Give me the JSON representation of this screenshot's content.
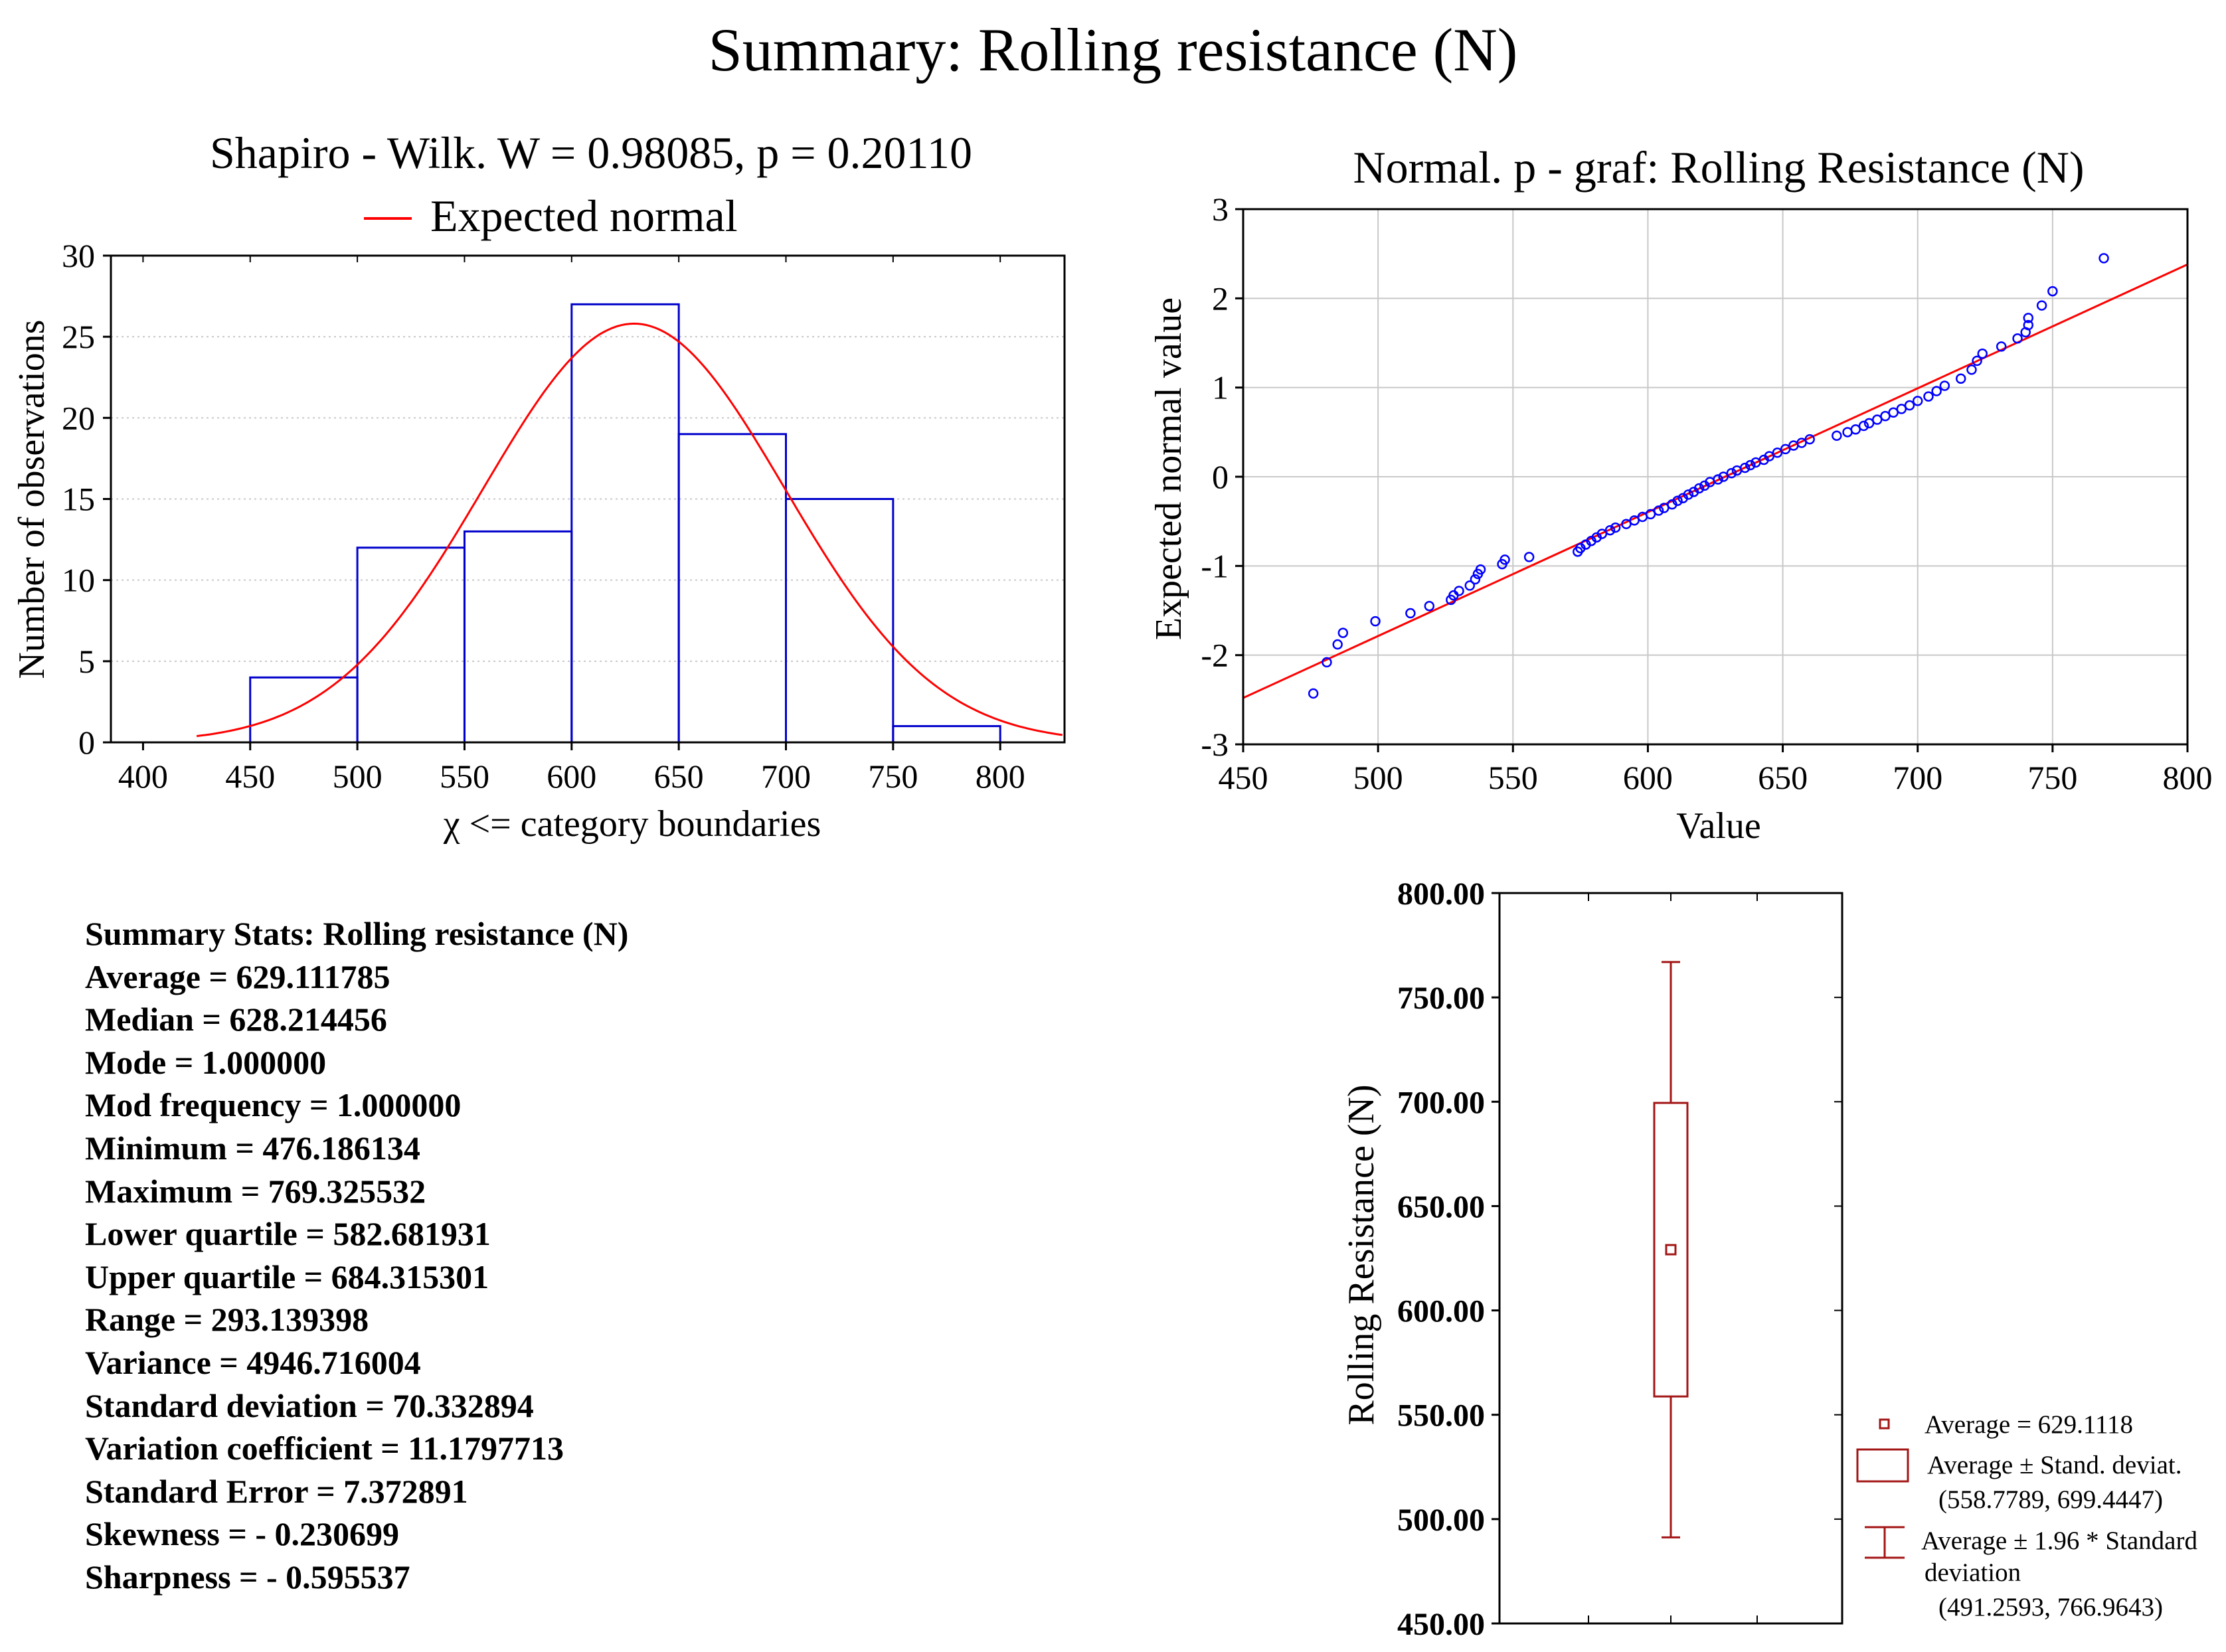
{
  "title": "Summary: Rolling resistance (N)",
  "colors": {
    "bar": "#0000cc",
    "curve": "#ff0000",
    "point": "#0000ff",
    "box": "#a31515",
    "grid": "#c8c8c8",
    "axis": "#000000"
  },
  "histogram": {
    "title": "Shapiro - Wilk. W = 0.98085, p = 0.20110",
    "legend": "Expected normal",
    "xlabel": "χ <= category boundaries",
    "ylabel": "Number of observations",
    "mean": 629.111785,
    "sd": 70.332894,
    "n": 91
  },
  "pplot": {
    "title": "Normal. p - graf: Rolling Resistance (N)",
    "xlabel": "Value",
    "ylabel": "Expected normal value"
  },
  "boxplot": {
    "ylabel": "Rolling Resistance (N)",
    "legend": [
      "Average = 629.1118",
      "Average ± Stand. deviat.",
      "(558.7789, 699.4447)",
      "Average ± 1.96 * Standard",
      "deviation",
      "(491.2593, 766.9643)"
    ]
  },
  "stats": [
    "Summary Stats: Rolling resistance (N)",
    "Average = 629.111785",
    "Median = 628.214456",
    "Mode = 1.000000",
    "Mod frequency = 1.000000",
    "Minimum = 476.186134",
    "Maximum = 769.325532",
    "Lower quartile = 582.681931",
    "Upper quartile = 684.315301",
    "Range = 293.139398",
    "Variance = 4946.716004",
    "Standard deviation = 70.332894",
    "Variation coefficient = 11.1797713",
    "Standard Error = 7.372891",
    "Skewness = - 0.230699",
    "Sharpness = - 0.595537"
  ],
  "chart_data": [
    {
      "type": "bar",
      "title": "Shapiro - Wilk. W = 0.98085, p = 0.20110",
      "xlabel": "χ <= category boundaries",
      "ylabel": "Number of observations",
      "bins": [
        [
          450,
          500
        ],
        [
          500,
          550
        ],
        [
          550,
          600
        ],
        [
          600,
          650
        ],
        [
          650,
          700
        ],
        [
          700,
          750
        ],
        [
          750,
          800
        ]
      ],
      "values": [
        4,
        12,
        13,
        27,
        19,
        15,
        1
      ],
      "xlim": [
        385,
        830
      ],
      "ylim": [
        0,
        30
      ],
      "xticks": [
        400,
        450,
        500,
        550,
        600,
        650,
        700,
        750,
        800
      ],
      "yticks": [
        0,
        5,
        10,
        15,
        20,
        25,
        30
      ],
      "series": [
        {
          "name": "Expected normal",
          "mean": 629.111785,
          "sd": 70.332894,
          "n": 91,
          "bin_width": 50
        }
      ]
    },
    {
      "type": "scatter",
      "title": "Normal. p - graf: Rolling Resistance (N)",
      "xlabel": "Value",
      "ylabel": "Expected normal value",
      "xlim": [
        450,
        800
      ],
      "ylim": [
        -3,
        3
      ],
      "xticks": [
        450,
        500,
        550,
        600,
        650,
        700,
        750,
        800
      ],
      "yticks": [
        -3,
        -2,
        -1,
        0,
        1,
        2,
        3
      ],
      "reference_line": [
        [
          450,
          -2.48
        ],
        [
          800,
          2.38
        ]
      ],
      "points": [
        [
          476,
          -2.43
        ],
        [
          481,
          -2.08
        ],
        [
          485,
          -1.88
        ],
        [
          487,
          -1.75
        ],
        [
          499,
          -1.62
        ],
        [
          512,
          -1.53
        ],
        [
          519,
          -1.45
        ],
        [
          527,
          -1.38
        ],
        [
          528,
          -1.33
        ],
        [
          530,
          -1.28
        ],
        [
          534,
          -1.22
        ],
        [
          536,
          -1.15
        ],
        [
          537,
          -1.09
        ],
        [
          538,
          -1.04
        ],
        [
          546,
          -0.98
        ],
        [
          547,
          -0.93
        ],
        [
          556,
          -0.9
        ],
        [
          574,
          -0.84
        ],
        [
          575,
          -0.8
        ],
        [
          577,
          -0.76
        ],
        [
          579,
          -0.72
        ],
        [
          581,
          -0.68
        ],
        [
          583,
          -0.64
        ],
        [
          586,
          -0.6
        ],
        [
          588,
          -0.57
        ],
        [
          592,
          -0.53
        ],
        [
          595,
          -0.49
        ],
        [
          598,
          -0.45
        ],
        [
          601,
          -0.42
        ],
        [
          604,
          -0.38
        ],
        [
          606,
          -0.35
        ],
        [
          609,
          -0.31
        ],
        [
          611,
          -0.27
        ],
        [
          613,
          -0.24
        ],
        [
          615,
          -0.2
        ],
        [
          617,
          -0.17
        ],
        [
          619,
          -0.13
        ],
        [
          621,
          -0.1
        ],
        [
          623,
          -0.06
        ],
        [
          626,
          -0.03
        ],
        [
          628,
          0.0
        ],
        [
          631,
          0.04
        ],
        [
          633,
          0.07
        ],
        [
          636,
          0.1
        ],
        [
          638,
          0.13
        ],
        [
          640,
          0.16
        ],
        [
          643,
          0.19
        ],
        [
          645,
          0.23
        ],
        [
          648,
          0.27
        ],
        [
          651,
          0.31
        ],
        [
          654,
          0.35
        ],
        [
          657,
          0.38
        ],
        [
          660,
          0.42
        ],
        [
          670,
          0.46
        ],
        [
          674,
          0.5
        ],
        [
          677,
          0.53
        ],
        [
          680,
          0.57
        ],
        [
          682,
          0.6
        ],
        [
          685,
          0.64
        ],
        [
          688,
          0.68
        ],
        [
          691,
          0.72
        ],
        [
          694,
          0.76
        ],
        [
          697,
          0.8
        ],
        [
          700,
          0.85
        ],
        [
          704,
          0.9
        ],
        [
          707,
          0.96
        ],
        [
          710,
          1.02
        ],
        [
          716,
          1.1
        ],
        [
          720,
          1.2
        ],
        [
          722,
          1.3
        ],
        [
          724,
          1.38
        ],
        [
          731,
          1.46
        ],
        [
          737,
          1.55
        ],
        [
          740,
          1.62
        ],
        [
          741,
          1.7
        ],
        [
          741,
          1.78
        ],
        [
          746,
          1.92
        ],
        [
          750,
          2.08
        ],
        [
          769,
          2.45
        ]
      ]
    },
    {
      "type": "box",
      "ylabel": "Rolling Resistance (N)",
      "ylim": [
        450,
        800
      ],
      "yticks": [
        450,
        500,
        550,
        600,
        650,
        700,
        750,
        800
      ],
      "ytick_labels": [
        "450.00",
        "500.00",
        "550.00",
        "600.00",
        "650.00",
        "700.00",
        "750.00",
        "800.00"
      ],
      "mean": 629.1118,
      "box": [
        558.7789,
        699.4447
      ],
      "whiskers": [
        491.2593,
        766.9643
      ]
    }
  ]
}
